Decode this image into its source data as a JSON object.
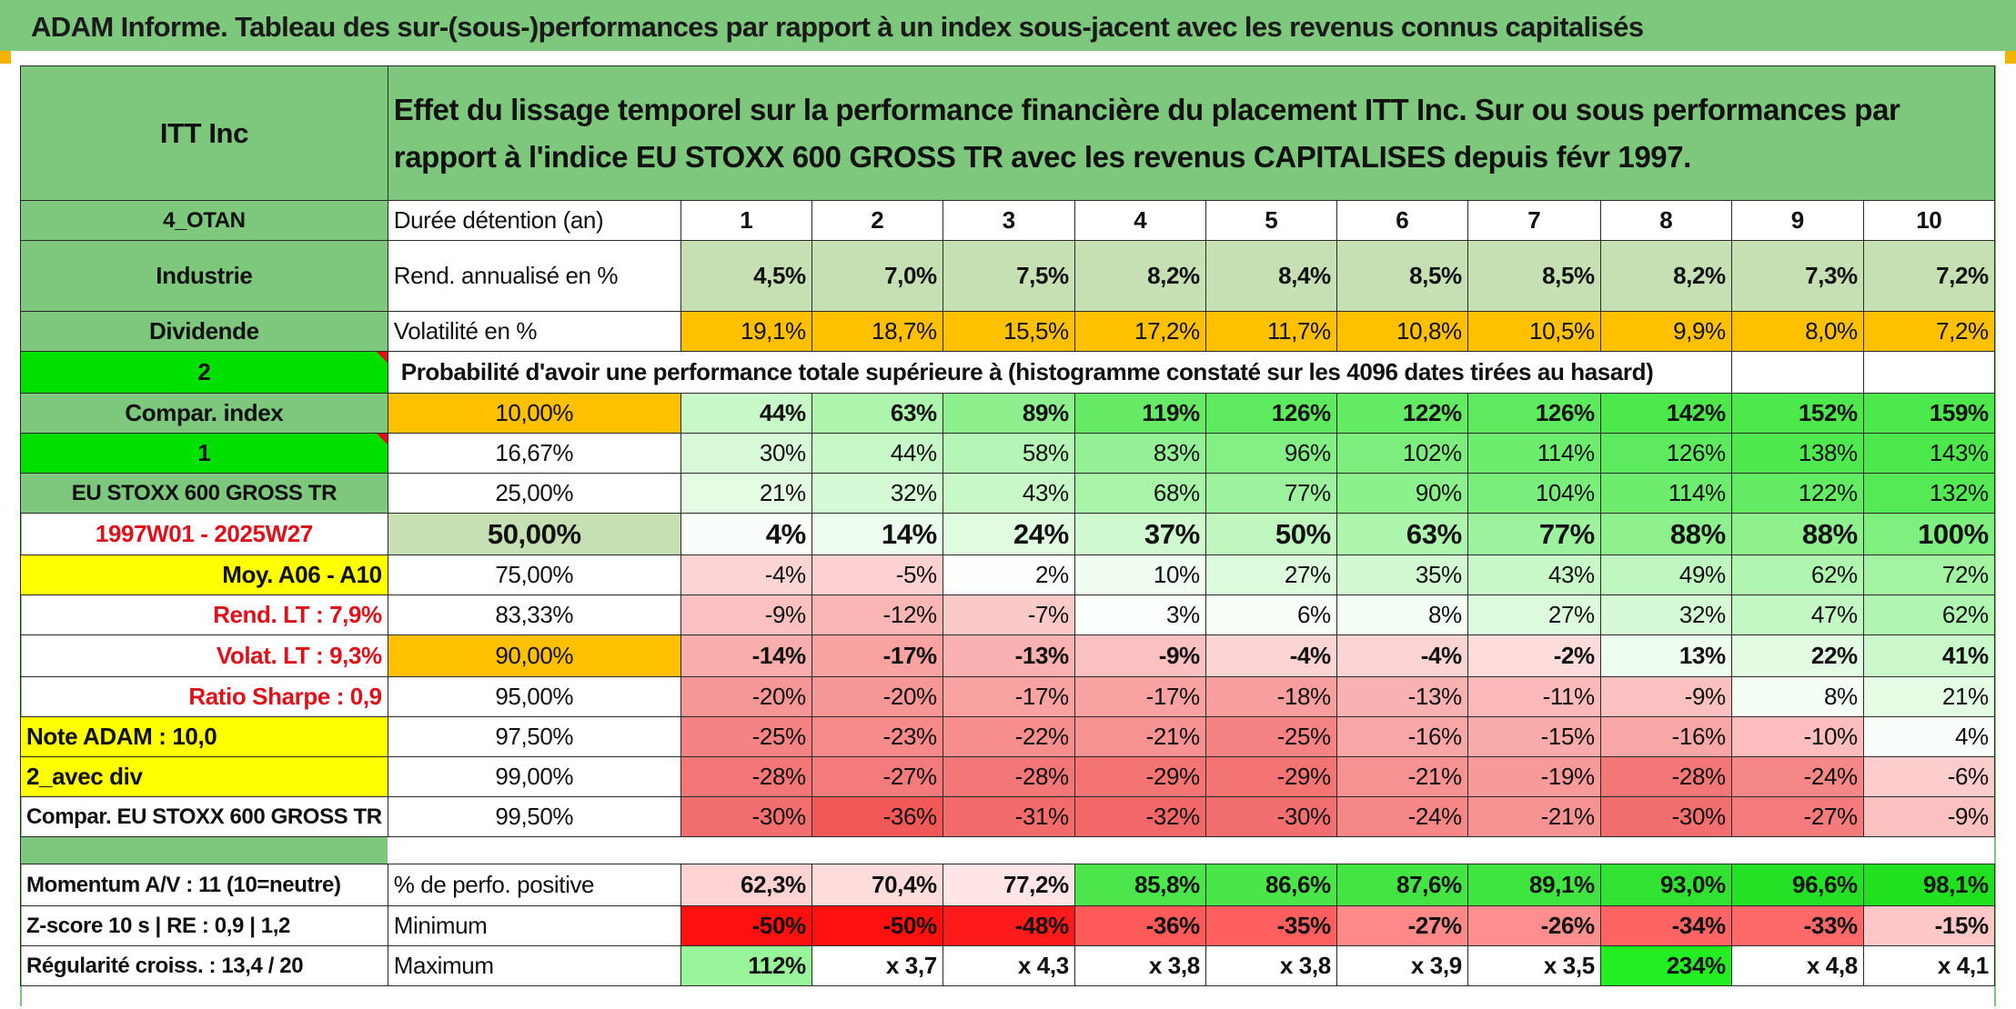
{
  "title": "ADAM Informe. Tableau des sur-(sous-)performances par rapport à un index sous-jacent avec les revenus connus capitalisés",
  "header": {
    "company": "ITT Inc",
    "description": "Effet du lissage temporel sur la performance financière du placement ITT Inc. Sur ou sous performances par rapport à l'indice EU STOXX 600 GROSS TR avec les revenus CAPITALISES depuis févr 1997."
  },
  "left_labels": {
    "code": "4_OTAN",
    "sector": "Industrie",
    "dividend": "Dividende",
    "dividend_value": "2",
    "compar_index": "Compar. index",
    "compar_index_value": "1",
    "index_name": "EU STOXX 600 GROSS TR",
    "period": "1997W01 - 2025W27",
    "avg": "Moy. A06 - A10",
    "rend_lt": "Rend. LT :   7,9%",
    "volat_lt": "Volat. LT :   9,3%",
    "sharpe": "Ratio Sharpe :   0,9",
    "note": "Note ADAM : 10,0",
    "with_div": "2_avec div",
    "compar_full": "Compar. EU STOXX 600 GROSS TR",
    "momentum": "Momentum A/V : 11 (10=neutre)",
    "zscore": "Z-score 10 s | RE : 0,9 | 1,2",
    "regularite": "Régularité croiss. : 13,4 / 20"
  },
  "row_labels": {
    "duration": "Durée détention (an)",
    "rend": "Rend. annualisé en %",
    "volat": "Volatilité en %",
    "proba": "Probabilité d'avoir une performance totale supérieure à (histogramme constaté sur les 4096 dates tirées au hasard)",
    "positive": "% de perfo. positive",
    "minimum": "Minimum",
    "maximum": "Maximum"
  },
  "years": [
    "1",
    "2",
    "3",
    "4",
    "5",
    "6",
    "7",
    "8",
    "9",
    "10"
  ],
  "rend": [
    "4,5%",
    "7,0%",
    "7,5%",
    "8,2%",
    "8,4%",
    "8,5%",
    "8,5%",
    "8,2%",
    "7,3%",
    "7,2%"
  ],
  "volat": [
    "19,1%",
    "18,7%",
    "15,5%",
    "17,2%",
    "11,7%",
    "10,8%",
    "10,5%",
    "9,9%",
    "8,0%",
    "7,2%"
  ],
  "prob_rows": [
    {
      "threshold": "10,00%",
      "values": [
        "44%",
        "63%",
        "89%",
        "119%",
        "126%",
        "122%",
        "126%",
        "142%",
        "152%",
        "159%"
      ]
    },
    {
      "threshold": "16,67%",
      "values": [
        "30%",
        "44%",
        "58%",
        "83%",
        "96%",
        "102%",
        "114%",
        "126%",
        "138%",
        "143%"
      ]
    },
    {
      "threshold": "25,00%",
      "values": [
        "21%",
        "32%",
        "43%",
        "68%",
        "77%",
        "90%",
        "104%",
        "114%",
        "122%",
        "132%"
      ]
    },
    {
      "threshold": "50,00%",
      "values": [
        "4%",
        "14%",
        "24%",
        "37%",
        "50%",
        "63%",
        "77%",
        "88%",
        "88%",
        "100%"
      ]
    },
    {
      "threshold": "75,00%",
      "values": [
        "-4%",
        "-5%",
        "2%",
        "10%",
        "27%",
        "35%",
        "43%",
        "49%",
        "62%",
        "72%"
      ]
    },
    {
      "threshold": "83,33%",
      "values": [
        "-9%",
        "-12%",
        "-7%",
        "3%",
        "6%",
        "8%",
        "27%",
        "32%",
        "47%",
        "62%"
      ]
    },
    {
      "threshold": "90,00%",
      "values": [
        "-14%",
        "-17%",
        "-13%",
        "-9%",
        "-4%",
        "-4%",
        "-2%",
        "13%",
        "22%",
        "41%"
      ]
    },
    {
      "threshold": "95,00%",
      "values": [
        "-20%",
        "-20%",
        "-17%",
        "-17%",
        "-18%",
        "-13%",
        "-11%",
        "-9%",
        "8%",
        "21%"
      ]
    },
    {
      "threshold": "97,50%",
      "values": [
        "-25%",
        "-23%",
        "-22%",
        "-21%",
        "-25%",
        "-16%",
        "-15%",
        "-16%",
        "-10%",
        "4%"
      ]
    },
    {
      "threshold": "99,00%",
      "values": [
        "-28%",
        "-27%",
        "-28%",
        "-29%",
        "-29%",
        "-21%",
        "-19%",
        "-28%",
        "-24%",
        "-6%"
      ]
    },
    {
      "threshold": "99,50%",
      "values": [
        "-30%",
        "-36%",
        "-31%",
        "-32%",
        "-30%",
        "-24%",
        "-21%",
        "-30%",
        "-27%",
        "-9%"
      ]
    }
  ],
  "positive": [
    "62,3%",
    "70,4%",
    "77,2%",
    "85,8%",
    "86,6%",
    "87,6%",
    "89,1%",
    "93,0%",
    "96,6%",
    "98,1%"
  ],
  "minimum": [
    "-50%",
    "-50%",
    "-48%",
    "-36%",
    "-35%",
    "-27%",
    "-26%",
    "-34%",
    "-33%",
    "-15%"
  ],
  "maximum": [
    "112%",
    "x 3,7",
    "x 4,3",
    "x 3,8",
    "x 3,8",
    "x 3,9",
    "x 3,5",
    "234%",
    "x 4,8",
    "x 4,1"
  ],
  "colors": {
    "title_green": "#7dc87d",
    "light_green": "#c6e0b4",
    "bright_green": "#00e000",
    "orange": "#ffc000",
    "yellow": "#ffff00",
    "red_text": "#e0101a"
  }
}
